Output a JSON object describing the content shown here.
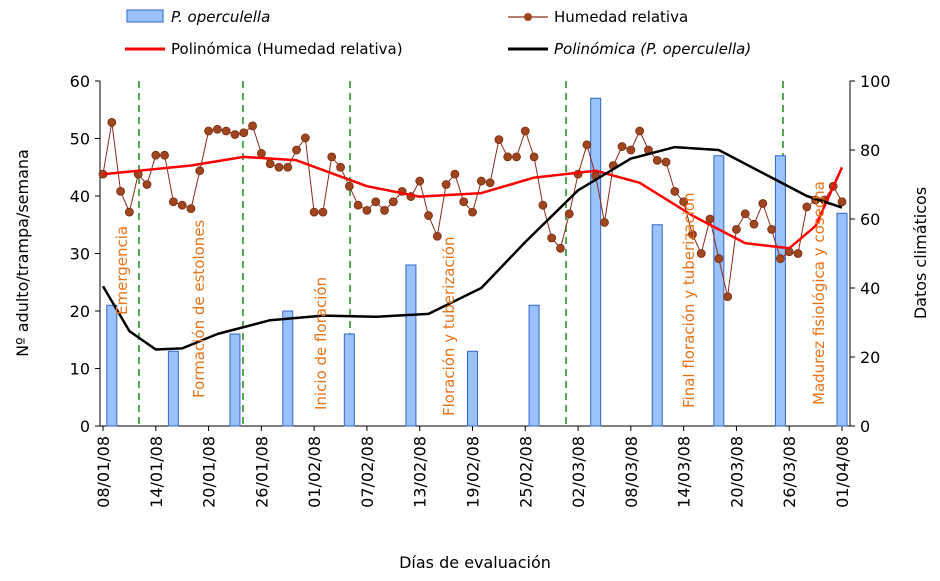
{
  "chart_data": {
    "type": "combo",
    "xlabel": "Días de evaluación",
    "ylabel": "Nº adulto/trampa/semana",
    "y2label": "Datos climáticos",
    "xlim": [
      "08/01/08",
      "01/04/08"
    ],
    "xticks": [
      "08/01/08",
      "14/01/08",
      "20/01/08",
      "26/01/08",
      "01/02/08",
      "07/02/08",
      "13/02/08",
      "19/02/08",
      "25/02/08",
      "02/03/08",
      "08/03/08",
      "14/03/08",
      "20/03/08",
      "26/03/08",
      "01/04/08"
    ],
    "ylim": [
      0,
      60
    ],
    "yticks": [
      0,
      10,
      20,
      30,
      40,
      50,
      60
    ],
    "y2lim": [
      0,
      100
    ],
    "y2ticks": [
      0,
      20,
      40,
      60,
      80,
      100
    ],
    "annotations": [
      "Emergencia",
      "Formación de estolones",
      "Inicio de floración",
      "Floración y tuberización",
      "Final floración y tuberización",
      "Madurez fisiológica y cosecha"
    ],
    "series": [
      {
        "name": "P. operculella",
        "type": "bar",
        "color": "#99c2ff",
        "x": [
          "09/01/08",
          "16/01/08",
          "23/01/08",
          "29/01/08",
          "05/02/08",
          "12/02/08",
          "19/02/08",
          "26/02/08",
          "04/03/08",
          "11/03/08",
          "18/03/08",
          "25/03/08",
          "01/04/08"
        ],
        "values": [
          21,
          13,
          16,
          20,
          16,
          28,
          13,
          21,
          57,
          35,
          47,
          47,
          37
        ]
      },
      {
        "name": "Humedad relativa",
        "type": "line-marker",
        "color": "#8b2a1a",
        "axis": "y2",
        "x": [
          "08/01/08",
          "09/01/08",
          "10/01/08",
          "11/01/08",
          "12/01/08",
          "13/01/08",
          "14/01/08",
          "15/01/08",
          "16/01/08",
          "17/01/08",
          "18/01/08",
          "19/01/08",
          "20/01/08",
          "21/01/08",
          "22/01/08",
          "23/01/08",
          "24/01/08",
          "25/01/08",
          "26/01/08",
          "27/01/08",
          "28/01/08",
          "29/01/08",
          "30/01/08",
          "31/01/08",
          "01/02/08",
          "02/02/08",
          "03/02/08",
          "04/02/08",
          "05/02/08",
          "06/02/08",
          "07/02/08",
          "08/02/08",
          "09/02/08",
          "10/02/08",
          "11/02/08",
          "12/02/08",
          "13/02/08",
          "14/02/08",
          "15/02/08",
          "16/02/08",
          "17/02/08",
          "18/02/08",
          "19/02/08",
          "20/02/08",
          "21/02/08",
          "22/02/08",
          "23/02/08",
          "24/02/08",
          "25/02/08",
          "26/02/08",
          "27/02/08",
          "28/02/08",
          "29/02/08",
          "01/03/08",
          "02/03/08",
          "03/03/08",
          "04/03/08",
          "05/03/08",
          "06/03/08",
          "07/03/08",
          "08/03/08",
          "09/03/08",
          "10/03/08",
          "11/03/08",
          "12/03/08",
          "13/03/08",
          "14/03/08",
          "15/03/08",
          "16/03/08",
          "17/03/08",
          "18/03/08",
          "19/03/08",
          "20/03/08",
          "21/03/08",
          "22/03/08",
          "23/03/08",
          "24/03/08",
          "25/03/08",
          "26/03/08",
          "27/03/08",
          "28/03/08",
          "29/03/08",
          "30/03/08",
          "31/03/08",
          "01/04/08"
        ],
        "values": [
          73,
          88,
          68,
          62,
          73,
          70,
          78.5,
          78.5,
          65,
          64,
          63,
          74,
          85.5,
          86,
          85.5,
          84.5,
          85,
          87,
          79,
          76,
          75,
          75,
          80,
          83.5,
          62,
          62,
          78,
          75,
          69.5,
          64,
          62.5,
          65,
          62.5,
          65,
          68,
          66.5,
          71,
          61,
          55,
          70,
          73,
          65,
          62,
          71,
          70.5,
          83,
          78,
          78,
          85.5,
          78,
          64,
          54.5,
          51.5,
          61.5,
          73,
          81.5,
          72.5,
          59,
          75.5,
          81,
          80,
          85.5,
          80,
          77,
          76.5,
          68,
          65,
          55.5,
          50,
          60,
          48.5,
          37.5,
          57,
          61.5,
          58.5,
          64.5,
          57,
          48.5,
          50.5,
          50,
          63.5,
          65.5,
          65.5,
          69.5,
          65
        ]
      },
      {
        "name": "Polinómica (Humedad relativa)",
        "type": "line",
        "color": "#ff0000",
        "axis": "y2",
        "x": [
          "08/01/08",
          "18/01/08",
          "24/01/08",
          "30/01/08",
          "07/02/08",
          "13/02/08",
          "20/02/08",
          "26/02/08",
          "04/03/08",
          "09/03/08",
          "15/03/08",
          "21/03/08",
          "26/03/08",
          "29/03/08",
          "01/04/08"
        ],
        "values": [
          73,
          75.5,
          78,
          77,
          69.5,
          66.5,
          67.5,
          72,
          74,
          70.5,
          61,
          53,
          51.5,
          58,
          75
        ]
      },
      {
        "name": "Polinómica (P. operculella)",
        "type": "line",
        "color": "#000000",
        "x": [
          "08/01/08",
          "11/01/08",
          "14/01/08",
          "17/01/08",
          "21/01/08",
          "27/01/08",
          "02/02/08",
          "08/02/08",
          "14/02/08",
          "20/02/08",
          "25/02/08",
          "02/03/08",
          "08/03/08",
          "13/03/08",
          "18/03/08",
          "23/03/08",
          "28/03/08",
          "01/04/08"
        ],
        "values": [
          24.3,
          16.5,
          13.3,
          13.5,
          16,
          18.4,
          19.2,
          19,
          19.5,
          24,
          32,
          41,
          46.5,
          48.5,
          48,
          44,
          40,
          38
        ]
      }
    ]
  }
}
